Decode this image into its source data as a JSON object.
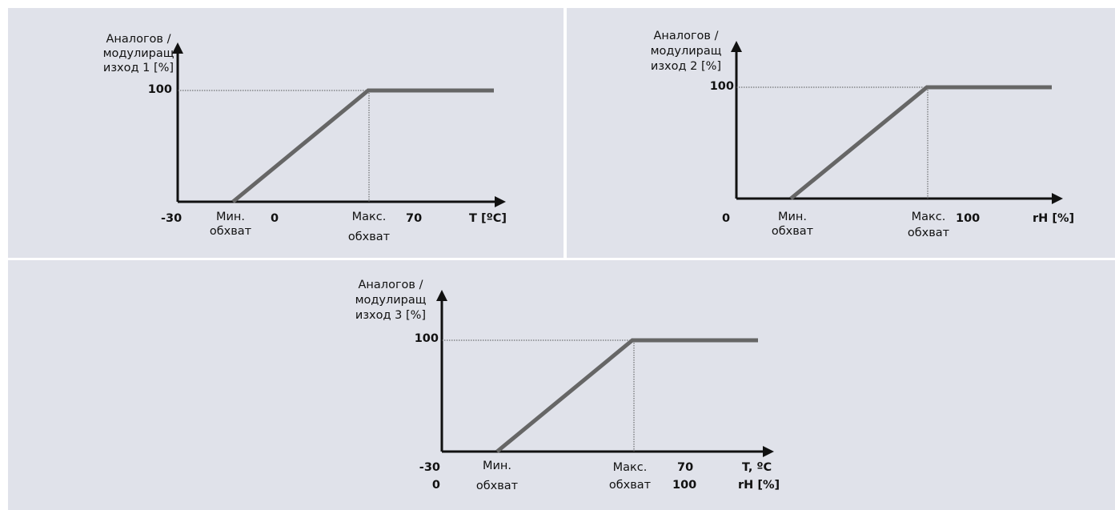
{
  "panels": [
    {
      "y_label_lines": [
        "Аналогов /",
        "модулиращ",
        "изход 1 [%]"
      ],
      "y_tick": "100",
      "x_ticks": {
        "left": "-30",
        "zero": "0",
        "right": "70"
      },
      "x_unit": "T [ºC]",
      "min_label": [
        "Мин.",
        "обхват"
      ],
      "max_label": [
        "Макс.",
        "обхват"
      ]
    },
    {
      "y_label_lines": [
        "Аналогов /",
        "модулиращ",
        "изход 2  [%]"
      ],
      "y_tick": "100",
      "x_ticks": {
        "left": "0",
        "right": "100"
      },
      "x_unit": "rH [%]",
      "min_label": [
        "Мин.",
        "обхват"
      ],
      "max_label": [
        "Макс.",
        "обхват"
      ]
    },
    {
      "y_label_lines": [
        "Аналогов /",
        "модулиращ",
        "изход 3  [%]"
      ],
      "y_tick": "100",
      "x_ticks": {
        "left": [
          "-30",
          "0"
        ],
        "right": [
          "70",
          "100"
        ]
      },
      "x_unit": [
        "T, ºC",
        "rH [%]"
      ],
      "min_label": [
        "Мин.",
        "обхват"
      ],
      "max_label": [
        "Макс.",
        "обхват"
      ]
    }
  ],
  "colors": {
    "background": "#e0e2ea",
    "axis": "#111111",
    "curve": "#666666",
    "guide": "#555555"
  }
}
